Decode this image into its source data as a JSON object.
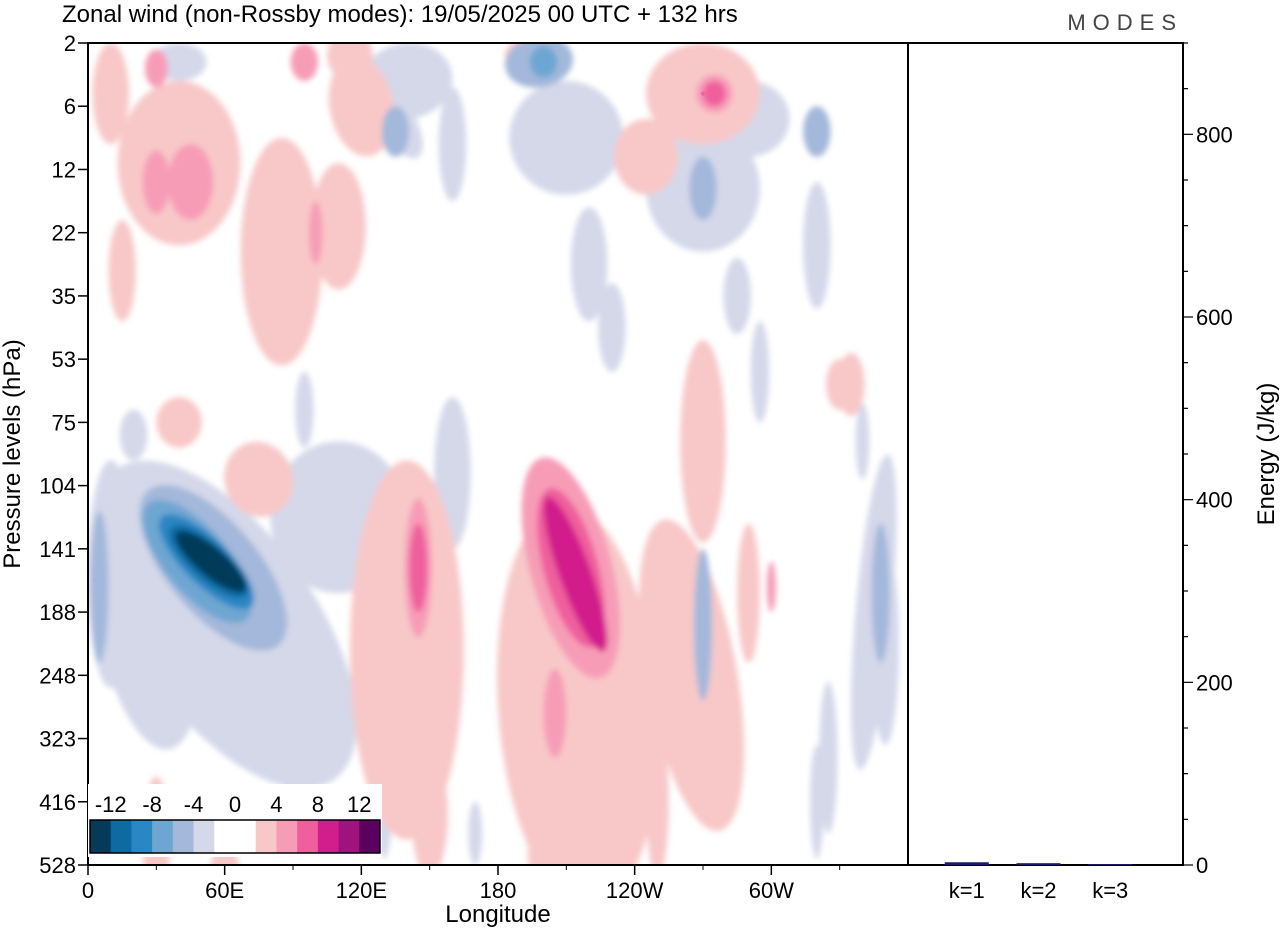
{
  "header": {
    "title": "Zonal wind (non-Rossby modes):  19/05/2025  00 UTC  + 132 hrs",
    "logo": "MODES"
  },
  "colors": {
    "neg": [
      "#053a5a",
      "#0e6aa0",
      "#2b86c4",
      "#6ea6d2",
      "#a3b8da",
      "#d4d8e9"
    ],
    "pos": [
      "#f8c8c8",
      "#f79cb7",
      "#ef5f9c",
      "#d21d8c",
      "#a0137f",
      "#5a005f"
    ],
    "bar": "#1a1a6e"
  },
  "chart_data": [
    {
      "type": "heatmap",
      "title": "Zonal wind (non-Rossby modes):  19/05/2025  00 UTC  + 132 hrs",
      "xlabel": "Longitude",
      "ylabel": "Pressure levels (hPa)",
      "x_ticks": [
        "0",
        "60E",
        "120E",
        "180",
        "120W",
        "60W"
      ],
      "y_ticks": [
        "2",
        "6",
        "12",
        "22",
        "35",
        "53",
        "75",
        "104",
        "141",
        "188",
        "248",
        "323",
        "416",
        "528"
      ],
      "xlim": [
        0,
        360
      ],
      "colorbar": {
        "labels": [
          "-12",
          "-8",
          "-4",
          "0",
          "4",
          "8",
          "12"
        ],
        "levels": [
          -14,
          -12,
          -10,
          -8,
          -6,
          -4,
          -2,
          0,
          2,
          4,
          6,
          8,
          10,
          12,
          14
        ]
      },
      "features": [
        {
          "name": "neg-core",
          "lon": 53,
          "lev": 8.3,
          "value": -14
        },
        {
          "name": "neg-low-left",
          "lon": 3,
          "lev": 8.5,
          "value": -4
        },
        {
          "name": "neg-east",
          "lon": 347,
          "lev": 8.8,
          "value": -4
        },
        {
          "name": "neg-upper",
          "lon": 198,
          "lev": 0.3,
          "value": -6
        },
        {
          "name": "pos-upper-left",
          "lon": 45,
          "lev": 2.1,
          "value": 4
        },
        {
          "name": "pos-upper-mid",
          "lon": 95,
          "lev": 3.0,
          "value": 2
        },
        {
          "name": "pos-left-middle",
          "lon": 145,
          "lev": 8.3,
          "value": 6
        },
        {
          "name": "pos-center",
          "lon": 212,
          "lev": 8.3,
          "value": 8
        },
        {
          "name": "pos-center-tail",
          "lon": 205,
          "lev": 11,
          "value": 4
        },
        {
          "name": "pos-lower-upper",
          "lon": 270,
          "lev": 0.8,
          "value": 6
        },
        {
          "name": "neg-right",
          "lon": 270,
          "lev": 2.3,
          "value": -4
        }
      ]
    },
    {
      "type": "bar",
      "ylabel": "Energy (J/kg)",
      "ylim": [
        0,
        900
      ],
      "y_ticks": [
        0,
        200,
        400,
        600,
        800
      ],
      "categories": [
        "k=1",
        "k=2",
        "k=3"
      ],
      "values": [
        3,
        2,
        1
      ]
    }
  ]
}
